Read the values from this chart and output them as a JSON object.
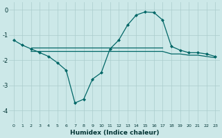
{
  "xlabel": "Humidex (Indice chaleur)",
  "ylabel": "",
  "x_ticks": [
    0,
    1,
    2,
    3,
    4,
    5,
    6,
    7,
    8,
    9,
    10,
    11,
    12,
    13,
    14,
    15,
    16,
    17,
    18,
    19,
    20,
    21,
    22,
    23
  ],
  "ylim": [
    -4.5,
    0.3
  ],
  "xlim": [
    -0.5,
    23.5
  ],
  "yticks": [
    0,
    -1,
    -2,
    -3,
    -4
  ],
  "background_color": "#cce8e8",
  "grid_color": "#aacccc",
  "line_color": "#006666",
  "main_x": [
    0,
    1,
    2,
    3,
    4,
    5,
    6,
    7,
    8,
    9,
    10,
    11,
    12,
    13,
    14,
    15,
    16,
    17,
    18,
    19,
    20,
    21,
    22,
    23
  ],
  "main_y": [
    -1.2,
    -1.4,
    -1.55,
    -1.7,
    -1.85,
    -2.1,
    -2.4,
    -3.7,
    -3.55,
    -2.75,
    -2.5,
    -1.55,
    -1.2,
    -0.6,
    -0.2,
    -0.08,
    -0.1,
    -0.4,
    -1.45,
    -1.6,
    -1.7,
    -1.7,
    -1.75,
    -1.85
  ],
  "flat1_x": [
    2,
    3,
    4,
    5,
    6,
    7,
    8,
    9,
    10,
    11,
    12,
    13,
    14,
    15,
    16,
    17
  ],
  "flat1_y": [
    -1.5,
    -1.5,
    -1.5,
    -1.5,
    -1.5,
    -1.5,
    -1.5,
    -1.5,
    -1.5,
    -1.5,
    -1.5,
    -1.5,
    -1.5,
    -1.5,
    -1.5,
    -1.5
  ],
  "flat2_x": [
    2,
    3,
    4,
    5,
    6,
    7,
    8,
    9,
    10,
    11,
    12,
    13,
    14,
    15,
    16,
    17,
    18,
    19,
    20,
    21,
    22,
    23
  ],
  "flat2_y": [
    -1.65,
    -1.65,
    -1.65,
    -1.65,
    -1.65,
    -1.65,
    -1.65,
    -1.65,
    -1.65,
    -1.65,
    -1.65,
    -1.65,
    -1.65,
    -1.65,
    -1.65,
    -1.65,
    -1.75,
    -1.75,
    -1.8,
    -1.8,
    -1.85,
    -1.9
  ]
}
